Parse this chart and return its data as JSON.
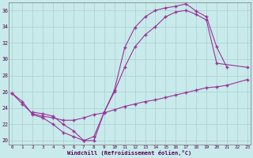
{
  "bg_color": "#c8eaea",
  "grid_color": "#a8d0d0",
  "line_color": "#993399",
  "xlabel": "Windchill (Refroidissement éolien,°C)",
  "xlim": [
    -0.3,
    23.3
  ],
  "ylim": [
    19.5,
    37.0
  ],
  "xticks": [
    0,
    1,
    2,
    3,
    4,
    5,
    6,
    7,
    8,
    9,
    10,
    11,
    12,
    13,
    14,
    15,
    16,
    17,
    18,
    19,
    20,
    21,
    22,
    23
  ],
  "yticks": [
    20,
    22,
    24,
    26,
    28,
    30,
    32,
    34,
    36
  ],
  "series": [
    {
      "x": [
        0,
        1,
        2,
        3,
        4,
        5,
        6,
        7,
        8,
        9,
        10,
        11,
        12,
        13,
        14,
        15,
        16,
        17,
        18,
        19,
        20,
        21
      ],
      "y": [
        25.8,
        24.8,
        23.2,
        22.8,
        22.0,
        21.0,
        20.5,
        20.0,
        20.0,
        23.5,
        26.2,
        31.4,
        33.9,
        35.2,
        36.0,
        36.3,
        36.5,
        36.8,
        35.9,
        35.2,
        31.5,
        29.0
      ]
    },
    {
      "x": [
        0,
        1,
        2,
        3,
        4,
        5,
        6,
        7,
        8,
        9,
        10,
        11,
        12,
        13,
        14,
        15,
        16,
        17,
        18,
        19,
        20,
        21,
        23
      ],
      "y": [
        25.8,
        24.5,
        23.3,
        23.0,
        22.8,
        22.5,
        22.5,
        22.8,
        23.2,
        23.4,
        23.8,
        24.2,
        24.5,
        24.8,
        25.0,
        25.3,
        25.6,
        25.9,
        26.2,
        26.5,
        26.6,
        26.8,
        27.5
      ]
    },
    {
      "x": [
        2,
        3,
        4,
        5,
        6,
        7,
        8,
        9,
        10,
        11,
        12,
        13,
        14,
        15,
        16,
        17,
        18,
        19,
        20,
        23
      ],
      "y": [
        23.5,
        23.3,
        23.0,
        22.0,
        21.2,
        20.0,
        20.5,
        23.5,
        26.0,
        29.0,
        31.5,
        33.0,
        34.0,
        35.2,
        35.8,
        36.0,
        35.5,
        34.8,
        29.5,
        29.0
      ]
    }
  ]
}
